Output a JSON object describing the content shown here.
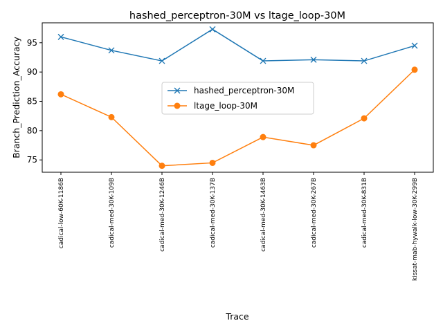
{
  "chart_data": {
    "type": "line",
    "title": "hashed_perceptron-30M vs ltage_loop-30M",
    "xlabel": "Trace",
    "ylabel": "Branch_Prediction_Accuracy",
    "categories": [
      "cadical-low-60K-1186B",
      "cadical-med-30K-109B",
      "cadical-med-30K-1246B",
      "cadical-med-30K-137B",
      "cadical-med-30K-1463B",
      "cadical-med-30K-267B",
      "cadical-med-30K-831B",
      "kissat-mab-hywalk-low-30K-299B"
    ],
    "ylim": [
      72.9,
      98.4
    ],
    "yticks": [
      75,
      80,
      85,
      90,
      95
    ],
    "grid": false,
    "legend_position": "center-right",
    "series": [
      {
        "name": "hashed_perceptron-30M",
        "color": "#1f77b4",
        "marker": "x",
        "values": [
          96.0,
          93.7,
          91.9,
          97.3,
          91.9,
          92.1,
          91.9,
          94.5
        ]
      },
      {
        "name": "ltage_loop-30M",
        "color": "#ff7f0e",
        "marker": "o",
        "values": [
          86.2,
          82.3,
          74.0,
          74.5,
          78.9,
          77.5,
          82.1,
          90.4
        ]
      }
    ]
  }
}
